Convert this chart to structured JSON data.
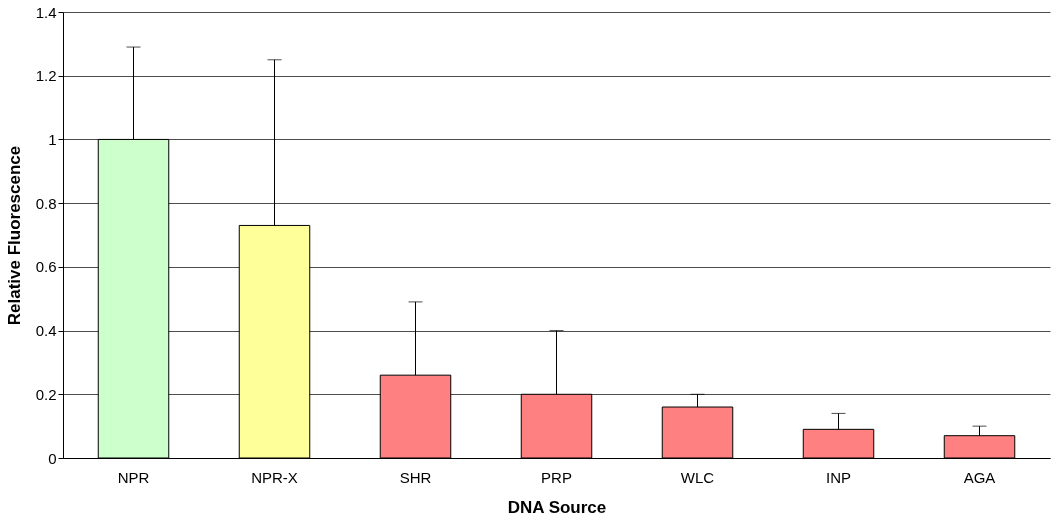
{
  "chart_data": {
    "type": "bar",
    "xlabel": "DNA Source",
    "ylabel": "Relative Fluorescence",
    "categories": [
      "NPR",
      "NPR-X",
      "SHR",
      "PRP",
      "WLC",
      "INP",
      "AGA"
    ],
    "values": [
      1.0,
      0.73,
      0.26,
      0.2,
      0.16,
      0.09,
      0.07
    ],
    "colors": [
      "#ccffcc",
      "#ffff99",
      "#ff8080",
      "#ff8080",
      "#ff8080",
      "#ff8080",
      "#ff8080"
    ],
    "errors": [
      [
        1.0,
        1.29
      ],
      [
        0.73,
        1.25
      ],
      [
        0.26,
        0.49
      ],
      [
        0.2,
        0.4
      ],
      [
        0.16,
        0.2
      ],
      [
        0.09,
        0.14
      ],
      [
        0.07,
        0.1
      ]
    ],
    "ylim": [
      0,
      1.4
    ],
    "yticks": [
      0,
      0.2,
      0.4,
      0.6,
      0.8,
      1,
      1.2,
      1.4
    ],
    "grid": "y"
  }
}
